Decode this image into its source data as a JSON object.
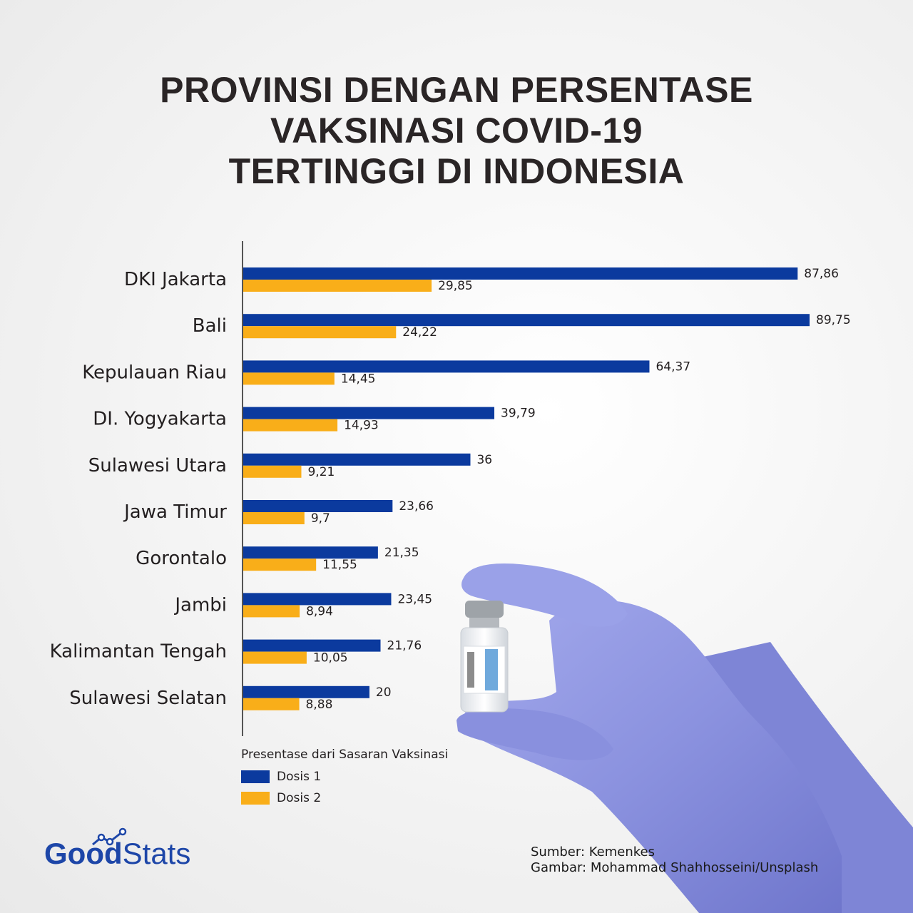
{
  "header": {
    "title_line1": "PROVINSI DENGAN PERSENTASE",
    "title_line2": "VAKSINASI COVID-19",
    "title_line3": "TERTINGGI DI INDONESIA"
  },
  "colors": {
    "dosis1": "#0b3a9e",
    "dosis2": "#f9ae19",
    "axis": "#555555",
    "glove": "#8f96e2"
  },
  "chart_data": {
    "type": "bar",
    "orientation": "horizontal",
    "categories": [
      "DKI Jakarta",
      "Bali",
      "Kepulauan Riau",
      "DI. Yogyakarta",
      "Sulawesi Utara",
      "Jawa Timur",
      "Gorontalo",
      "Jambi",
      "Kalimantan Tengah",
      "Sulawesi Selatan"
    ],
    "series": [
      {
        "name": "Dosis 1",
        "values": [
          87.86,
          89.75,
          64.37,
          39.79,
          36,
          23.66,
          21.35,
          23.45,
          21.76,
          20
        ]
      },
      {
        "name": "Dosis 2",
        "values": [
          29.85,
          24.22,
          14.45,
          14.93,
          9.21,
          9.7,
          11.55,
          8.94,
          10.05,
          8.88
        ]
      }
    ],
    "value_labels": {
      "Dosis 1": [
        "87,86",
        "89,75",
        "64,37",
        "39,79",
        "36",
        "23,66",
        "21,35",
        "23,45",
        "21,76",
        "20"
      ],
      "Dosis 2": [
        "29,85",
        "24,22",
        "14,45",
        "14,93",
        "9,21",
        "9,7",
        "11,55",
        "8,94",
        "10,05",
        "8,88"
      ]
    },
    "legend": {
      "title": "Presentase dari Sasaran Vaksinasi",
      "position": "bottom-left"
    },
    "xlim": [
      0,
      100
    ],
    "grid": false
  },
  "footer": {
    "source": "Sumber: Kemenkes",
    "image_credit": "Gambar: Mohammad Shahhosseini/Unsplash",
    "logo_good": "Good",
    "logo_stats": "Stats"
  },
  "icons": [
    "goodstats-logo-icon",
    "vaccine-vial-hand-image"
  ]
}
